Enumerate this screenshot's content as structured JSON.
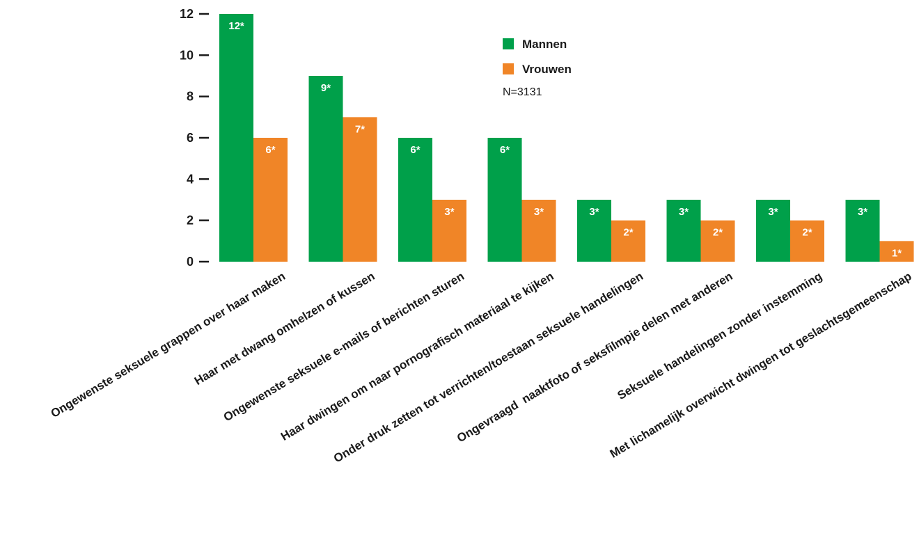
{
  "chart_data": {
    "type": "bar",
    "categories": [
      "Ongewenste seksuele grappen over haar maken",
      "Haar met dwang omhelzen of kussen",
      "Ongewenste seksuele e-mails of berichten sturen",
      "Haar dwingen om naar pornografisch materiaal te kijken",
      "Onder druk zetten tot verrichten/toestaan seksuele handelingen",
      "Ongevraagd  naaktfoto of seksfilmpje delen met anderen",
      "Seksuele handelingen zonder instemming",
      "Met lichamelijk overwicht dwingen tot geslachtsgemeenschap"
    ],
    "series": [
      {
        "name": "Mannen",
        "color": "#00a04a",
        "values": [
          12,
          9,
          6,
          6,
          3,
          3,
          3,
          3
        ],
        "labels": [
          "12*",
          "9*",
          "6*",
          "6*",
          "3*",
          "3*",
          "3*",
          "3*"
        ]
      },
      {
        "name": "Vrouwen",
        "color": "#f08527",
        "values": [
          6,
          7,
          3,
          3,
          2,
          2,
          2,
          1
        ],
        "labels": [
          "6*",
          "7*",
          "3*",
          "3*",
          "2*",
          "2*",
          "2*",
          "1*"
        ]
      }
    ],
    "yticks": [
      "0",
      "2",
      "4",
      "6",
      "8",
      "10",
      "12"
    ],
    "ylim": [
      0,
      12
    ],
    "note": "N=3131",
    "legend_position": "top-center",
    "grid": false
  }
}
